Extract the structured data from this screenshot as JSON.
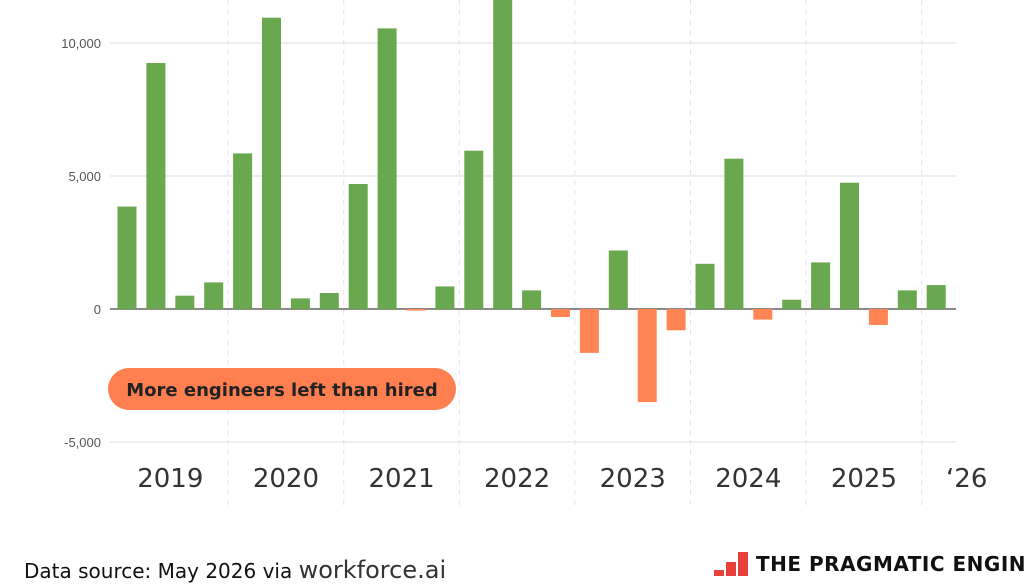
{
  "chart_data": {
    "type": "bar",
    "title": "",
    "xlabel": "",
    "ylabel": "",
    "ylim": [
      -5500,
      11500
    ],
    "y_ticks": [
      -5000,
      0,
      5000,
      10000
    ],
    "y_tick_labels": [
      "-5,000",
      "0",
      "5,000",
      "10,000"
    ],
    "groups": [
      "2019",
      "2020",
      "2021",
      "2022",
      "2023",
      "2024",
      "2025",
      "‘26"
    ],
    "series": [
      {
        "values": [
          3850,
          9250,
          500,
          1000,
          5850,
          10950,
          400,
          600,
          4700,
          10550,
          -50,
          850,
          5950,
          11850,
          700,
          -300,
          -1650,
          2200,
          -3500,
          -800,
          1700,
          5650,
          -400,
          350,
          1750,
          4750,
          -600,
          700,
          900
        ]
      }
    ],
    "bars_per_group": [
      4,
      4,
      4,
      4,
      4,
      4,
      4,
      1
    ],
    "grid": true,
    "colors": {
      "positive": "#6aa84f",
      "negative": "#ff8654",
      "grid": "#dddddd",
      "annotation_fill": "#ff7f50"
    },
    "annotation": "More engineers left than hired"
  },
  "footer": {
    "source_label": "Data source:  May 2026 via",
    "source_link": "workforce.ai",
    "brand": "THE PRAGMATIC ENGINEER"
  }
}
